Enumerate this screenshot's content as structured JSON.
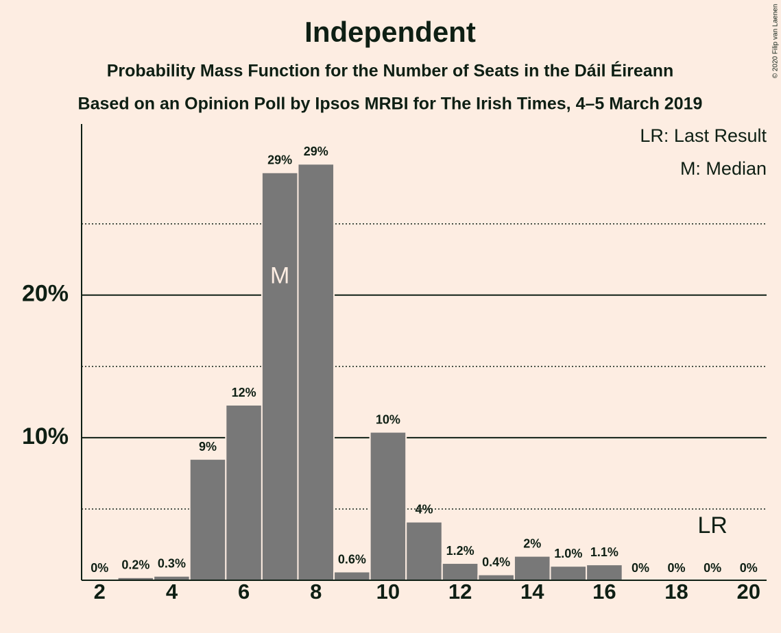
{
  "chart_data": {
    "type": "bar",
    "title": "Independent",
    "subtitle": "Probability Mass Function for the Number of Seats in the Dáil Éireann",
    "subtitle2": "Based on an Opinion Poll by Ipsos MRBI for The Irish Times, 4–5 March 2019",
    "copyright": "© 2020 Filip van Laenen",
    "legend": [
      "LR: Last Result",
      "M: Median"
    ],
    "legend_position": "top-right",
    "x": [
      2,
      3,
      4,
      5,
      6,
      7,
      8,
      9,
      10,
      11,
      12,
      13,
      14,
      15,
      16,
      17,
      18,
      19,
      20
    ],
    "values": [
      0,
      0.2,
      0.3,
      8.5,
      12.3,
      28.6,
      29.2,
      0.6,
      10.4,
      4.1,
      1.2,
      0.4,
      1.7,
      1.0,
      1.1,
      0,
      0,
      0,
      0
    ],
    "value_labels": [
      "0%",
      "0.2%",
      "0.3%",
      "9%",
      "12%",
      "29%",
      "29%",
      "0.6%",
      "10%",
      "4%",
      "1.2%",
      "0.4%",
      "2%",
      "1.0%",
      "1.1%",
      "0%",
      "0%",
      "0%",
      "0%"
    ],
    "color": "#787878",
    "xlim": [
      1.5,
      20.5
    ],
    "xticks": [
      2,
      4,
      6,
      8,
      10,
      12,
      14,
      16,
      18,
      20
    ],
    "ylim": [
      0,
      32
    ],
    "yticks": [
      {
        "value": 10,
        "label": "10%"
      },
      {
        "value": 20,
        "label": "20%"
      }
    ],
    "minor_gridlines": [
      5,
      15,
      25
    ],
    "grid": true,
    "markers": [
      {
        "label": "M",
        "x": 7
      },
      {
        "label": "LR",
        "x": 19
      }
    ]
  }
}
